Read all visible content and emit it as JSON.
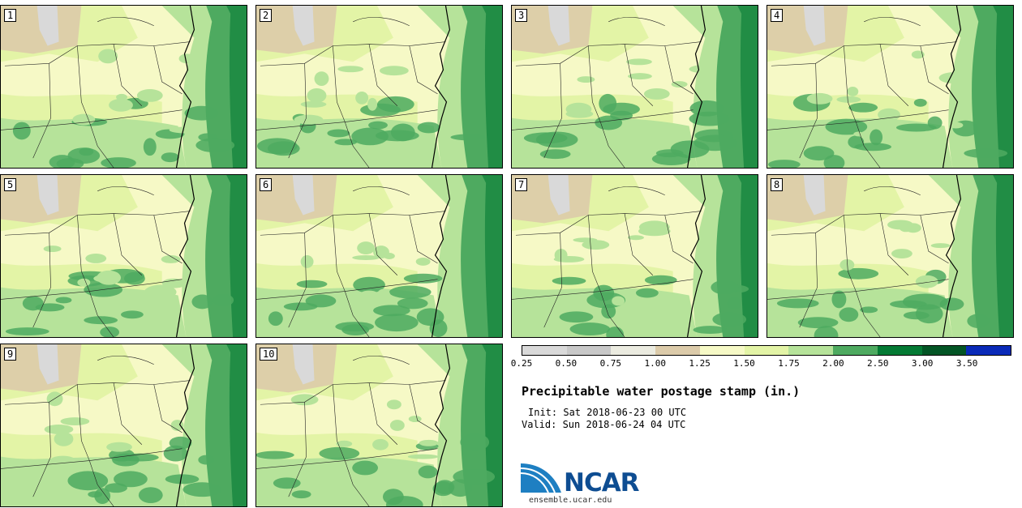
{
  "panels": [
    {
      "label": "1"
    },
    {
      "label": "2"
    },
    {
      "label": "3"
    },
    {
      "label": "4"
    },
    {
      "label": "5"
    },
    {
      "label": "6"
    },
    {
      "label": "7"
    },
    {
      "label": "8"
    },
    {
      "label": "9"
    },
    {
      "label": "10"
    }
  ],
  "legend": {
    "colors": [
      "#d9d9d9",
      "#c8c8c8",
      "#ebebe0",
      "#dccbaa",
      "#f6f9c6",
      "#e3f4a6",
      "#b6e39a",
      "#4eaa60",
      "#047a34",
      "#035525",
      "#0a2ab8"
    ],
    "ticks": [
      "0.25",
      "0.50",
      "0.75",
      "1.00",
      "1.25",
      "1.50",
      "1.75",
      "2.00",
      "2.50",
      "3.00",
      "3.50"
    ]
  },
  "title": "Precipitable water postage stamp (in.)",
  "init": "Init: Sat 2018-06-23 00 UTC",
  "valid": "Valid: Sun 2018-06-24 04 UTC",
  "logo": {
    "word": "NCAR",
    "url": "ensemble.ucar.edu"
  }
}
